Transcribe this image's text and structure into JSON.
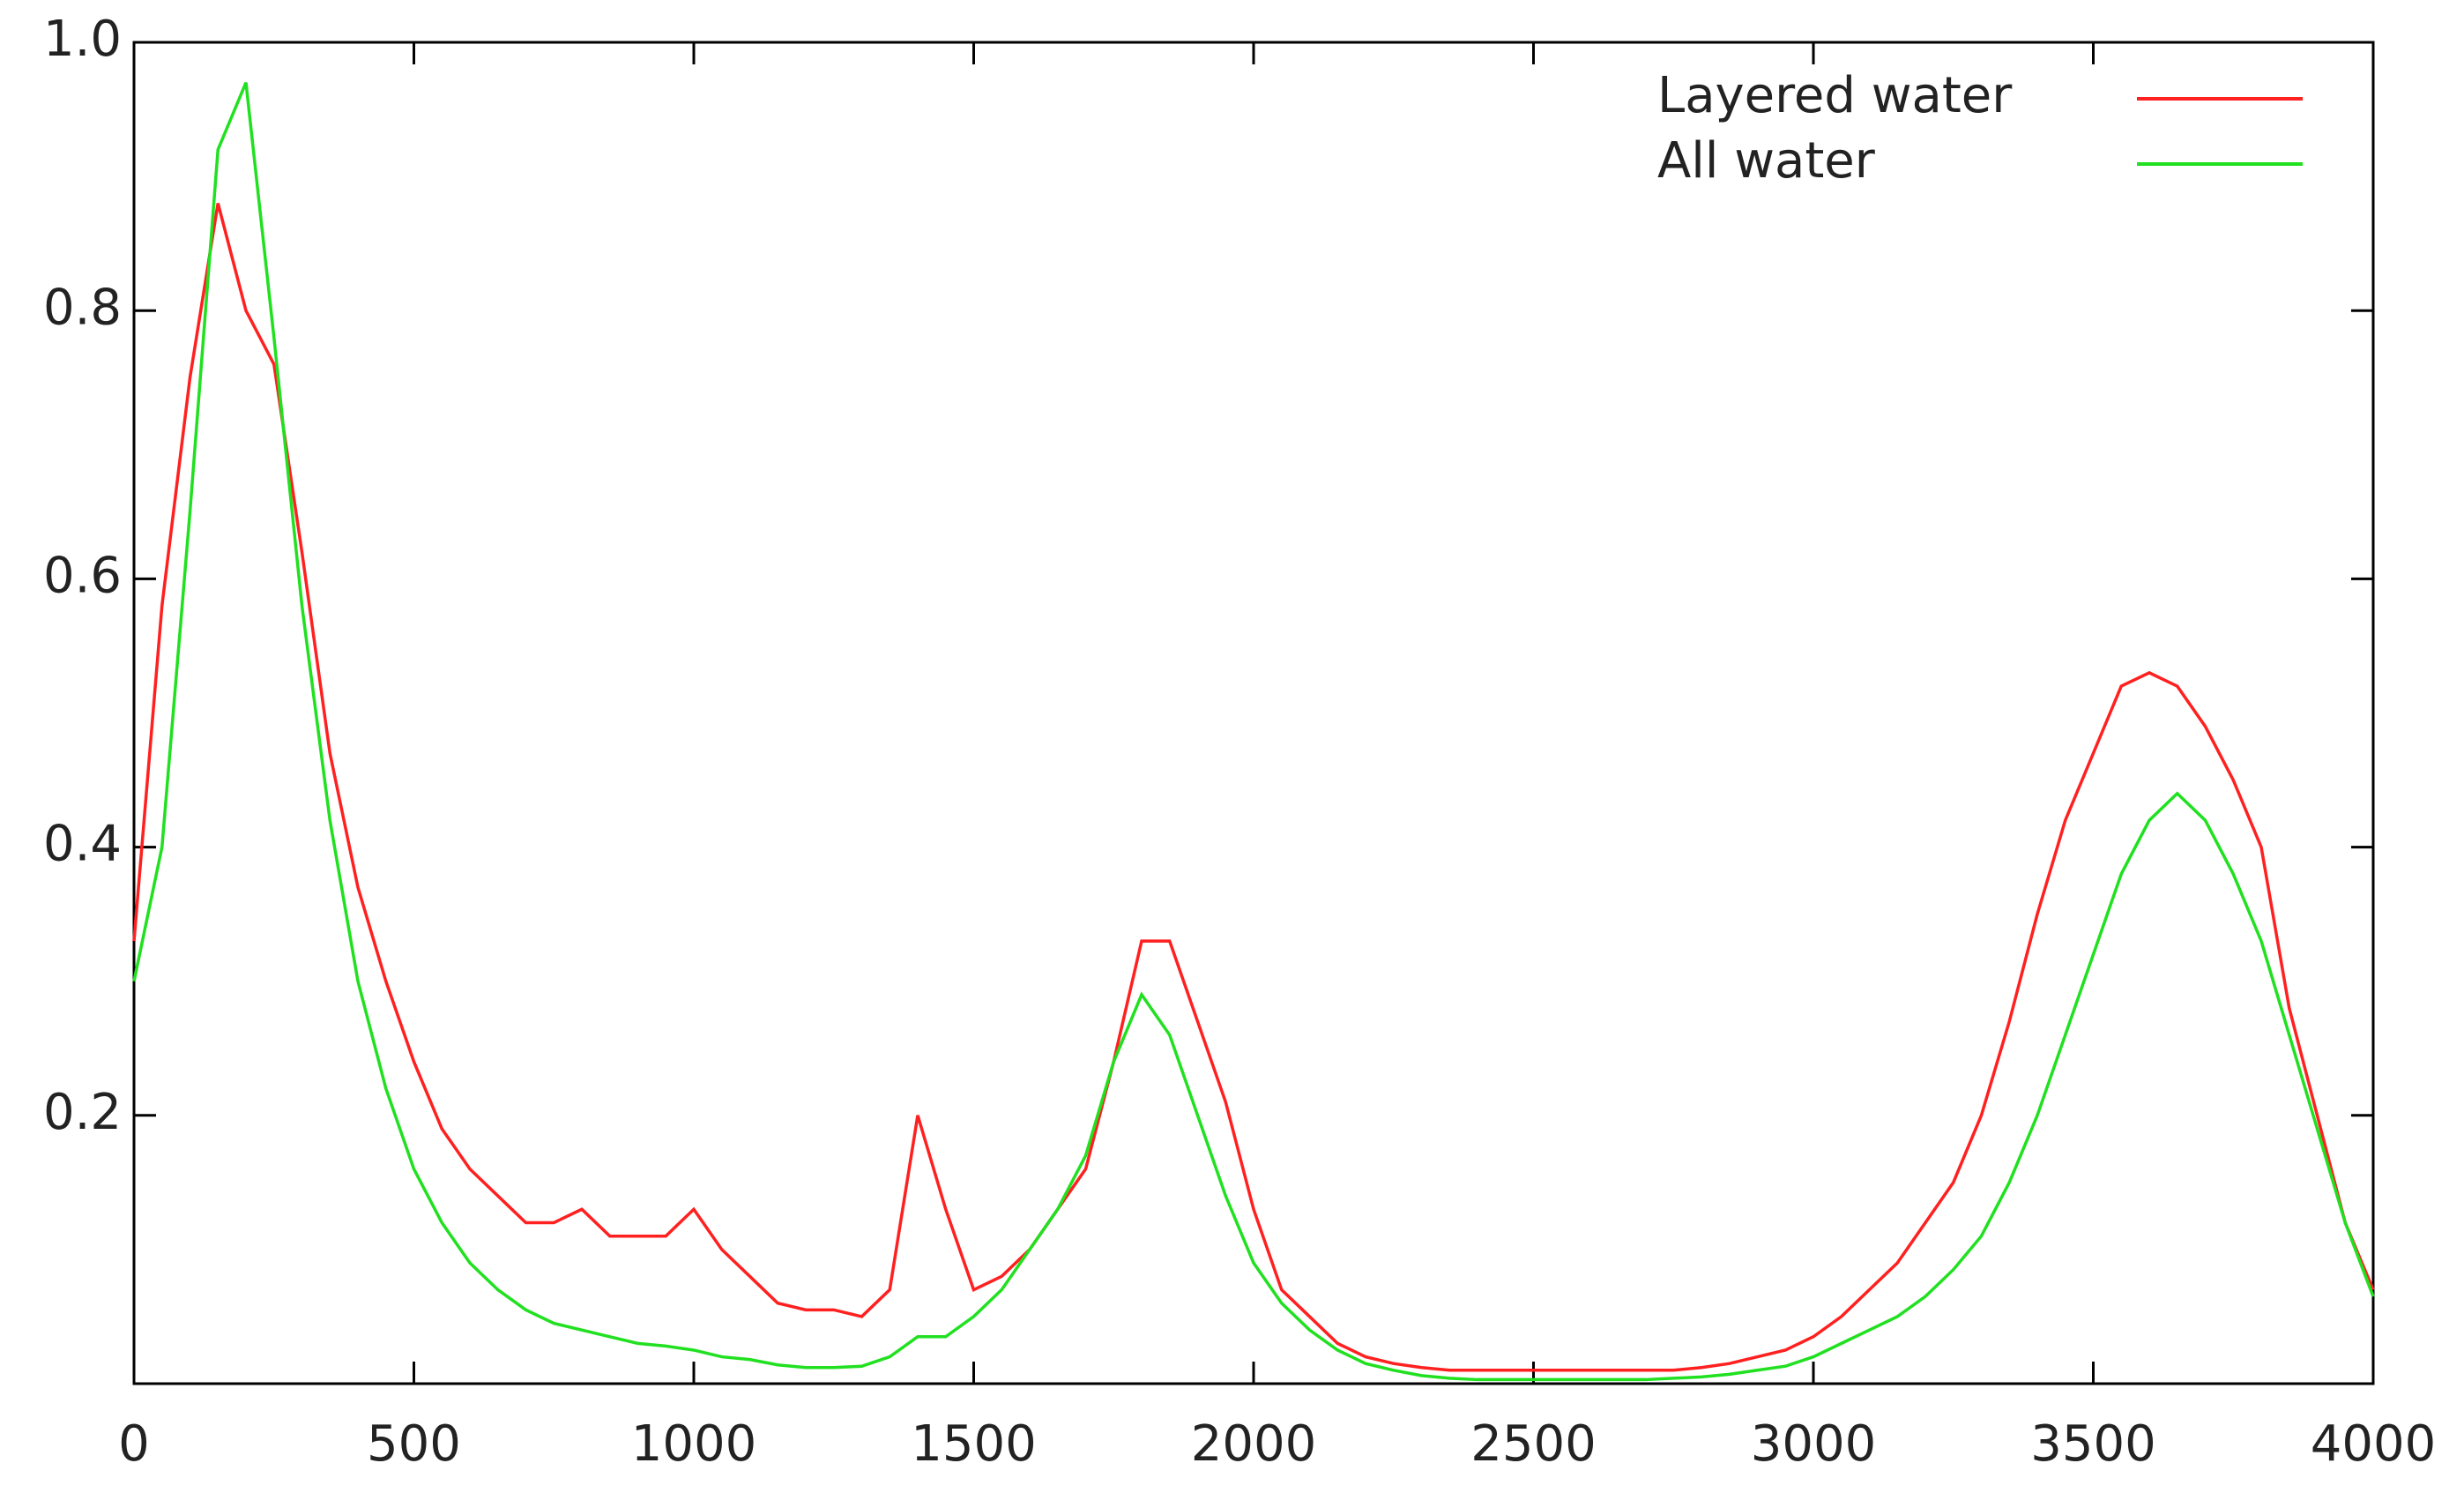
{
  "chart_data": {
    "type": "line",
    "x": [
      0,
      50,
      100,
      150,
      200,
      250,
      300,
      350,
      400,
      450,
      500,
      550,
      600,
      650,
      700,
      750,
      800,
      850,
      900,
      950,
      1000,
      1050,
      1100,
      1150,
      1200,
      1250,
      1300,
      1350,
      1400,
      1450,
      1500,
      1550,
      1600,
      1650,
      1700,
      1750,
      1800,
      1850,
      1900,
      1950,
      2000,
      2050,
      2100,
      2150,
      2200,
      2250,
      2300,
      2350,
      2400,
      2450,
      2500,
      2550,
      2600,
      2650,
      2700,
      2750,
      2800,
      2850,
      2900,
      2950,
      3000,
      3050,
      3100,
      3150,
      3200,
      3250,
      3300,
      3350,
      3400,
      3450,
      3500,
      3550,
      3600,
      3650,
      3700,
      3750,
      3800,
      3850,
      3900,
      3950,
      4000
    ],
    "series": [
      {
        "name": "Layered water",
        "color": "#ff2020",
        "values": [
          0.33,
          0.58,
          0.75,
          0.88,
          0.8,
          0.76,
          0.62,
          0.47,
          0.37,
          0.3,
          0.24,
          0.19,
          0.16,
          0.14,
          0.12,
          0.12,
          0.13,
          0.11,
          0.11,
          0.11,
          0.13,
          0.1,
          0.08,
          0.06,
          0.055,
          0.055,
          0.05,
          0.07,
          0.2,
          0.13,
          0.07,
          0.08,
          0.1,
          0.13,
          0.16,
          0.24,
          0.33,
          0.33,
          0.27,
          0.21,
          0.13,
          0.07,
          0.05,
          0.03,
          0.02,
          0.015,
          0.012,
          0.01,
          0.01,
          0.01,
          0.01,
          0.01,
          0.01,
          0.01,
          0.01,
          0.01,
          0.012,
          0.015,
          0.02,
          0.025,
          0.035,
          0.05,
          0.07,
          0.09,
          0.12,
          0.15,
          0.2,
          0.27,
          0.35,
          0.42,
          0.47,
          0.52,
          0.53,
          0.52,
          0.49,
          0.45,
          0.4,
          0.28,
          0.2,
          0.12,
          0.07
        ]
      },
      {
        "name": "All water",
        "color": "#20e020",
        "values": [
          0.3,
          0.4,
          0.65,
          0.92,
          0.97,
          0.78,
          0.58,
          0.42,
          0.3,
          0.22,
          0.16,
          0.12,
          0.09,
          0.07,
          0.055,
          0.045,
          0.04,
          0.035,
          0.03,
          0.028,
          0.025,
          0.02,
          0.018,
          0.014,
          0.012,
          0.012,
          0.013,
          0.02,
          0.035,
          0.035,
          0.05,
          0.07,
          0.1,
          0.13,
          0.17,
          0.24,
          0.29,
          0.26,
          0.2,
          0.14,
          0.09,
          0.06,
          0.04,
          0.025,
          0.015,
          0.01,
          0.006,
          0.004,
          0.003,
          0.003,
          0.003,
          0.003,
          0.003,
          0.003,
          0.003,
          0.004,
          0.005,
          0.007,
          0.01,
          0.013,
          0.02,
          0.03,
          0.04,
          0.05,
          0.065,
          0.085,
          0.11,
          0.15,
          0.2,
          0.26,
          0.32,
          0.38,
          0.42,
          0.44,
          0.42,
          0.38,
          0.33,
          0.26,
          0.19,
          0.12,
          0.065
        ]
      }
    ],
    "xlim": [
      0,
      4000
    ],
    "xticks": [
      0,
      500,
      1000,
      1500,
      2000,
      2500,
      3000,
      3500,
      4000
    ],
    "ylim": [
      0,
      1
    ],
    "yticks": [
      0.2,
      0.4,
      0.6,
      0.8,
      {
        "value": 1,
        "label": "1.0"
      }
    ],
    "legend": "top-right"
  }
}
